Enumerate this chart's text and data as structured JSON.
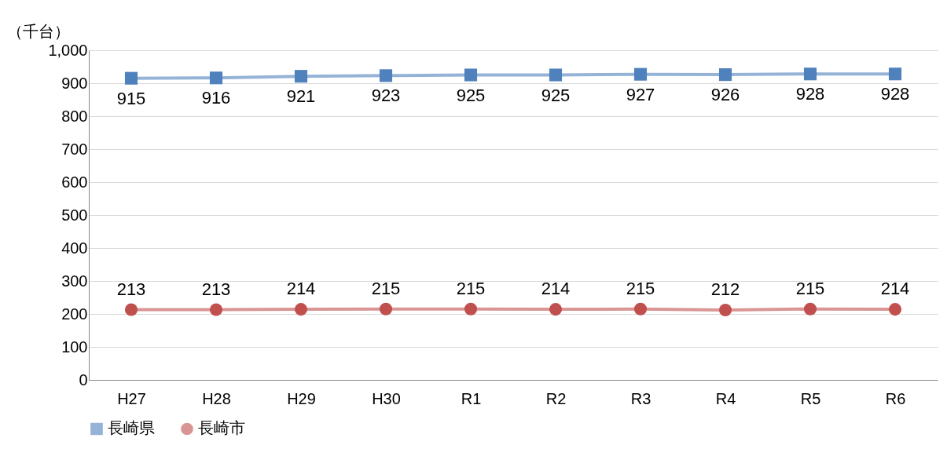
{
  "chart_data": {
    "type": "line",
    "ylabel": "（千台）",
    "categories": [
      "H27",
      "H28",
      "H29",
      "H30",
      "R1",
      "R2",
      "R3",
      "R4",
      "R5",
      "R6"
    ],
    "series": [
      {
        "name": "長崎県",
        "color": "#4f81bd",
        "marker": "square",
        "values": [
          915,
          916,
          921,
          923,
          925,
          925,
          927,
          926,
          928,
          928
        ]
      },
      {
        "name": "長崎市",
        "color": "#c0504d",
        "marker": "circle",
        "values": [
          213,
          213,
          214,
          215,
          215,
          214,
          215,
          212,
          215,
          214
        ]
      }
    ],
    "ylim": [
      0,
      1000
    ],
    "yticks": [
      0,
      100,
      200,
      300,
      400,
      500,
      600,
      700,
      800,
      900,
      {
        "value": 1000,
        "label": "1,000"
      }
    ],
    "grid": "y",
    "legend": "bottom",
    "data_labels": true,
    "line_style": "solid"
  }
}
